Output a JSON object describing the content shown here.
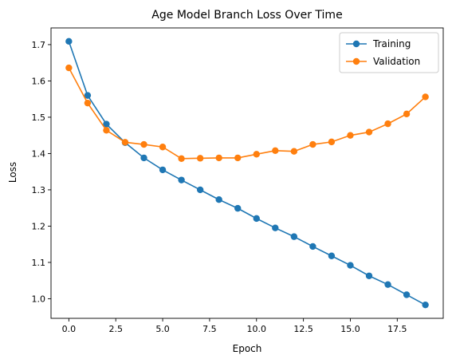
{
  "chart_data": {
    "type": "line",
    "title": "Age Model Branch Loss Over Time",
    "xlabel": "Epoch",
    "ylabel": "Loss",
    "xlim": [
      -0.95,
      19.95
    ],
    "ylim": [
      0.946,
      1.746
    ],
    "x_ticks": [
      0.0,
      2.5,
      5.0,
      7.5,
      10.0,
      12.5,
      15.0,
      17.5
    ],
    "x_tick_labels": [
      "0.0",
      "2.5",
      "5.0",
      "7.5",
      "10.0",
      "12.5",
      "15.0",
      "17.5"
    ],
    "y_ticks": [
      1.0,
      1.1,
      1.2,
      1.3,
      1.4,
      1.5,
      1.6,
      1.7
    ],
    "y_tick_labels": [
      "1.0",
      "1.1",
      "1.2",
      "1.3",
      "1.4",
      "1.5",
      "1.6",
      "1.7"
    ],
    "grid": false,
    "legend_position": "top-right",
    "x": [
      0,
      1,
      2,
      3,
      4,
      5,
      6,
      7,
      8,
      9,
      10,
      11,
      12,
      13,
      14,
      15,
      16,
      17,
      18,
      19
    ],
    "series": [
      {
        "name": "Training",
        "color": "#1f77b4",
        "values": [
          1.709,
          1.56,
          1.481,
          1.43,
          1.388,
          1.355,
          1.327,
          1.3,
          1.273,
          1.249,
          1.221,
          1.195,
          1.171,
          1.144,
          1.118,
          1.092,
          1.063,
          1.039,
          1.011,
          0.983
        ]
      },
      {
        "name": "Validation",
        "color": "#ff7f0e",
        "values": [
          1.636,
          1.539,
          1.464,
          1.431,
          1.425,
          1.418,
          1.386,
          1.387,
          1.388,
          1.388,
          1.398,
          1.408,
          1.406,
          1.425,
          1.432,
          1.45,
          1.459,
          1.482,
          1.509,
          1.556
        ]
      }
    ]
  }
}
